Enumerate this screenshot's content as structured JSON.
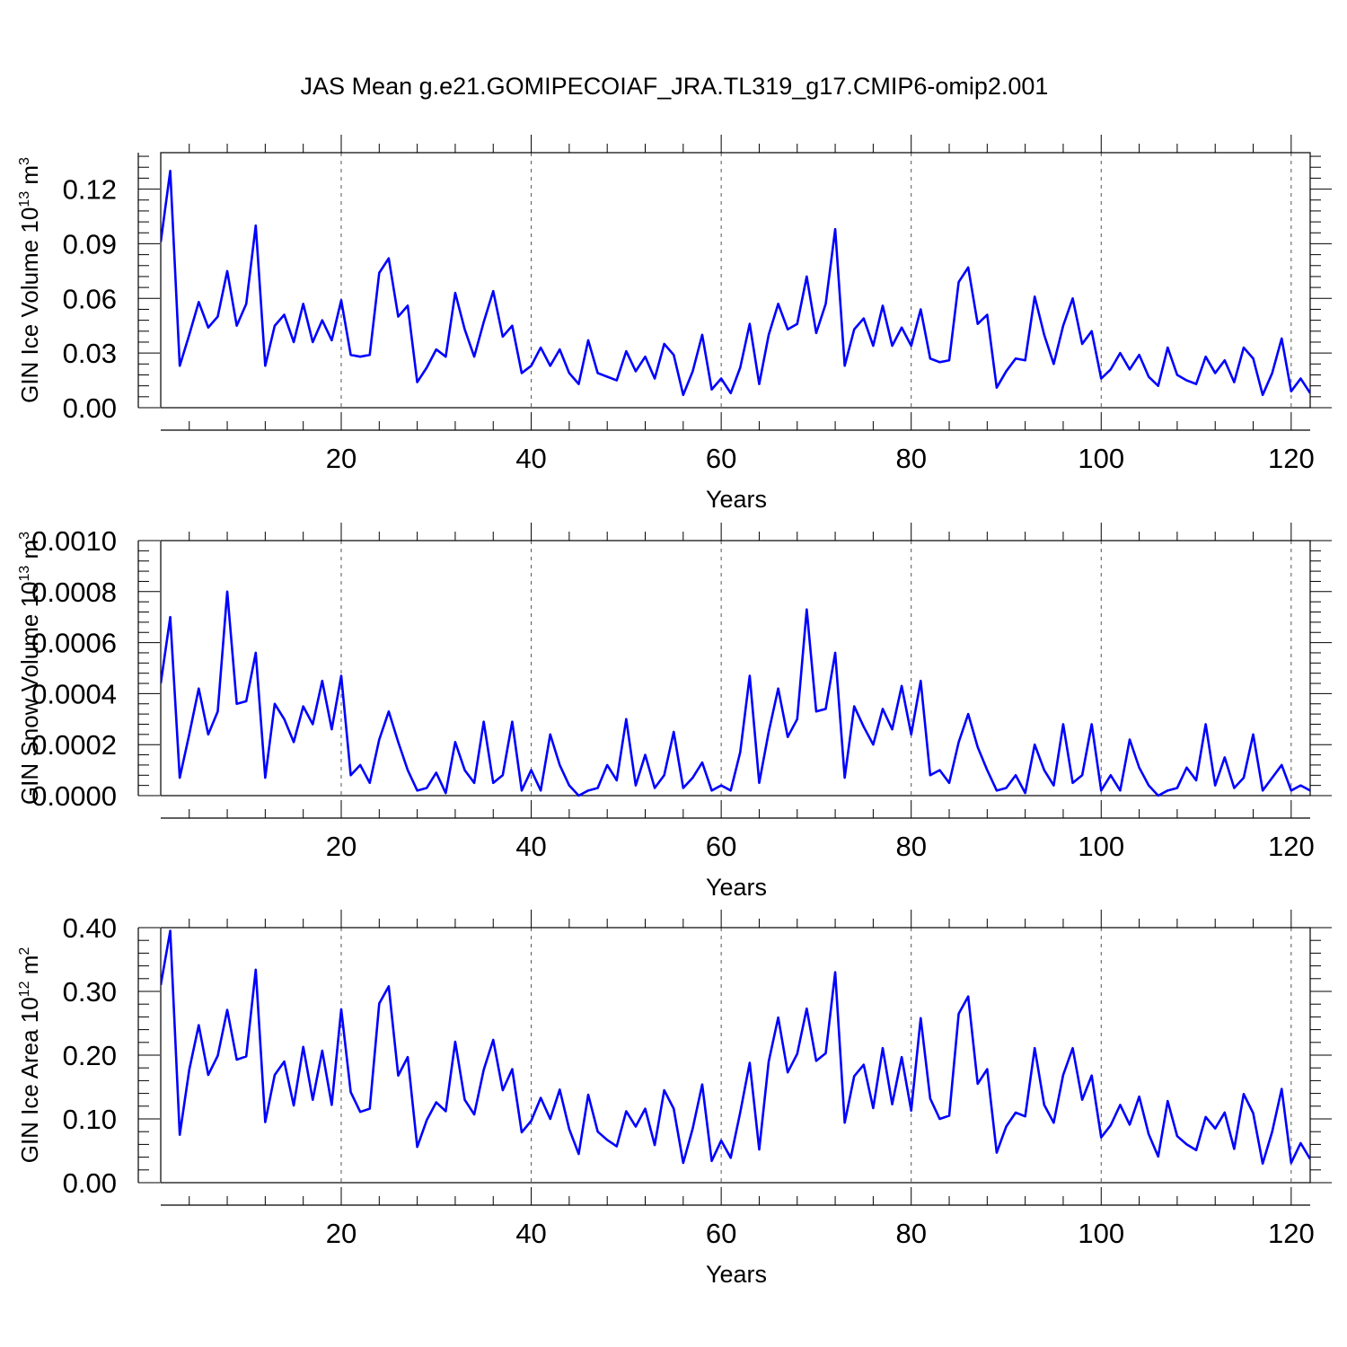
{
  "title": "JAS Mean g.e21.GOMIPECOIAF_JRA.TL319_g17.CMIP6-omip2.001",
  "line_color": "#0000ff",
  "chart_data": [
    {
      "type": "line",
      "ylabel": "GIN Ice Volume 10",
      "ylabel_exp": "13",
      "ylabel_unit": " m",
      "ylabel_unit_exp": "3",
      "xlabel": "Years",
      "xlim": [
        1,
        122
      ],
      "ylim": [
        0,
        0.14
      ],
      "xticks": [
        20,
        40,
        60,
        80,
        100,
        120
      ],
      "xtick_labels": [
        "20",
        "40",
        "60",
        "80",
        "100",
        "120"
      ],
      "yticks": [
        0,
        0.03,
        0.06,
        0.09,
        0.12
      ],
      "ytick_labels": [
        "0.00",
        "0.03",
        "0.06",
        "0.09",
        "0.12"
      ],
      "ytick_minor_step": 0.006,
      "grid": "vertical dashed at major x ticks",
      "x_start": 1,
      "values": [
        0.091,
        0.13,
        0.023,
        0.04,
        0.058,
        0.044,
        0.05,
        0.075,
        0.045,
        0.057,
        0.1,
        0.023,
        0.045,
        0.051,
        0.036,
        0.057,
        0.036,
        0.048,
        0.037,
        0.059,
        0.029,
        0.028,
        0.029,
        0.074,
        0.082,
        0.05,
        0.056,
        0.014,
        0.022,
        0.032,
        0.028,
        0.063,
        0.043,
        0.028,
        0.047,
        0.064,
        0.039,
        0.045,
        0.019,
        0.023,
        0.033,
        0.023,
        0.032,
        0.019,
        0.013,
        0.037,
        0.019,
        0.017,
        0.015,
        0.031,
        0.02,
        0.028,
        0.016,
        0.035,
        0.029,
        0.007,
        0.02,
        0.04,
        0.01,
        0.016,
        0.008,
        0.022,
        0.046,
        0.013,
        0.04,
        0.057,
        0.043,
        0.046,
        0.072,
        0.041,
        0.057,
        0.098,
        0.023,
        0.043,
        0.049,
        0.034,
        0.056,
        0.034,
        0.044,
        0.034,
        0.054,
        0.027,
        0.025,
        0.026,
        0.069,
        0.077,
        0.046,
        0.051,
        0.011,
        0.02,
        0.027,
        0.026,
        0.061,
        0.04,
        0.024,
        0.045,
        0.06,
        0.035,
        0.042,
        0.016,
        0.021,
        0.03,
        0.021,
        0.029,
        0.017,
        0.012,
        0.033,
        0.018,
        0.015,
        0.013,
        0.028,
        0.019,
        0.026,
        0.014,
        0.033,
        0.027,
        0.007,
        0.019,
        0.038,
        0.009,
        0.016,
        0.008
      ]
    },
    {
      "type": "line",
      "ylabel": "GIN Snow Volume 10",
      "ylabel_exp": "13",
      "ylabel_unit": " m",
      "ylabel_unit_exp": "3",
      "xlabel": "Years",
      "xlim": [
        1,
        122
      ],
      "ylim": [
        0,
        0.001
      ],
      "xticks": [
        20,
        40,
        60,
        80,
        100,
        120
      ],
      "xtick_labels": [
        "20",
        "40",
        "60",
        "80",
        "100",
        "120"
      ],
      "yticks": [
        0,
        0.0002,
        0.0004,
        0.0006,
        0.0008,
        0.001
      ],
      "ytick_labels": [
        "0.0000",
        "0.0002",
        "0.0004",
        "0.0006",
        "0.0008",
        "0.0010"
      ],
      "ytick_minor_step": 4e-05,
      "grid": "vertical dashed at major x ticks",
      "x_start": 1,
      "values": [
        0.00044,
        0.0007,
        7e-05,
        0.00024,
        0.00042,
        0.00024,
        0.00033,
        0.0008,
        0.00036,
        0.00037,
        0.00056,
        7e-05,
        0.00036,
        0.0003,
        0.00021,
        0.00035,
        0.00028,
        0.00045,
        0.00026,
        0.00047,
        8e-05,
        0.00012,
        5e-05,
        0.00022,
        0.00033,
        0.00021,
        0.0001,
        2e-05,
        3e-05,
        9e-05,
        1e-05,
        0.00021,
        0.0001,
        5e-05,
        0.00029,
        5e-05,
        8e-05,
        0.00029,
        2e-05,
        0.0001,
        2e-05,
        0.00024,
        0.00012,
        4e-05,
        0.0,
        2e-05,
        3e-05,
        0.00012,
        6e-05,
        0.0003,
        4e-05,
        0.00016,
        3e-05,
        8e-05,
        0.00025,
        3e-05,
        7e-05,
        0.00013,
        2e-05,
        4e-05,
        2e-05,
        0.00017,
        0.00047,
        5e-05,
        0.00025,
        0.00042,
        0.00023,
        0.0003,
        0.00073,
        0.00033,
        0.00034,
        0.00056,
        7e-05,
        0.00035,
        0.00027,
        0.0002,
        0.00034,
        0.00026,
        0.00043,
        0.00024,
        0.00045,
        8e-05,
        0.0001,
        5e-05,
        0.00021,
        0.00032,
        0.00019,
        0.0001,
        2e-05,
        3e-05,
        8e-05,
        1e-05,
        0.0002,
        0.0001,
        4e-05,
        0.00028,
        5e-05,
        8e-05,
        0.00028,
        2e-05,
        8e-05,
        2e-05,
        0.00022,
        0.00011,
        4e-05,
        0.0,
        2e-05,
        3e-05,
        0.00011,
        6e-05,
        0.00028,
        4e-05,
        0.00015,
        3e-05,
        7e-05,
        0.00024,
        2e-05,
        7e-05,
        0.00012,
        2e-05,
        4e-05,
        2e-05
      ]
    },
    {
      "type": "line",
      "ylabel": "GIN Ice Area 10",
      "ylabel_exp": "12",
      "ylabel_unit": " m",
      "ylabel_unit_exp": "2",
      "xlabel": "Years",
      "xlim": [
        1,
        122
      ],
      "ylim": [
        0,
        0.4
      ],
      "xticks": [
        20,
        40,
        60,
        80,
        100,
        120
      ],
      "xtick_labels": [
        "20",
        "40",
        "60",
        "80",
        "100",
        "120"
      ],
      "yticks": [
        0,
        0.1,
        0.2,
        0.3,
        0.4
      ],
      "ytick_labels": [
        "0.00",
        "0.10",
        "0.20",
        "0.30",
        "0.40"
      ],
      "ytick_minor_step": 0.02,
      "grid": "vertical dashed at major x ticks",
      "x_start": 1,
      "values": [
        0.31,
        0.395,
        0.075,
        0.177,
        0.247,
        0.169,
        0.199,
        0.271,
        0.193,
        0.198,
        0.334,
        0.095,
        0.169,
        0.19,
        0.121,
        0.213,
        0.13,
        0.207,
        0.122,
        0.272,
        0.142,
        0.111,
        0.116,
        0.281,
        0.308,
        0.168,
        0.197,
        0.056,
        0.098,
        0.126,
        0.112,
        0.221,
        0.13,
        0.107,
        0.177,
        0.224,
        0.145,
        0.178,
        0.079,
        0.097,
        0.133,
        0.1,
        0.146,
        0.084,
        0.045,
        0.138,
        0.08,
        0.067,
        0.057,
        0.112,
        0.088,
        0.116,
        0.059,
        0.145,
        0.116,
        0.031,
        0.085,
        0.154,
        0.034,
        0.066,
        0.039,
        0.11,
        0.188,
        0.052,
        0.19,
        0.259,
        0.173,
        0.202,
        0.273,
        0.191,
        0.203,
        0.33,
        0.094,
        0.167,
        0.185,
        0.117,
        0.211,
        0.123,
        0.197,
        0.113,
        0.258,
        0.132,
        0.1,
        0.105,
        0.265,
        0.292,
        0.155,
        0.178,
        0.047,
        0.088,
        0.11,
        0.104,
        0.211,
        0.122,
        0.094,
        0.169,
        0.211,
        0.13,
        0.168,
        0.071,
        0.09,
        0.122,
        0.091,
        0.135,
        0.076,
        0.041,
        0.128,
        0.073,
        0.06,
        0.051,
        0.103,
        0.085,
        0.11,
        0.053,
        0.139,
        0.109,
        0.03,
        0.08,
        0.147,
        0.031,
        0.062,
        0.037
      ]
    }
  ]
}
